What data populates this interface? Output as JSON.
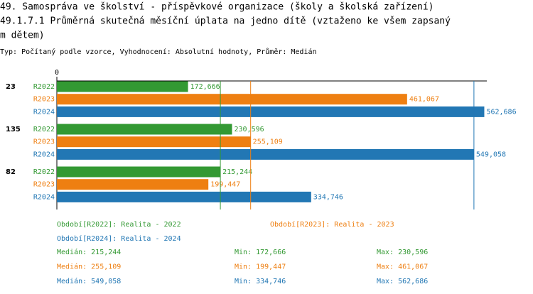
{
  "chart_data": {
    "type": "bar",
    "orientation": "horizontal",
    "title_lines": [
      "49. Samospráva ve školství - příspěvkové organizace (školy a školská zařízení)",
      "49.1.7.1 Průměrná skutečná měsíční úplata na jedno dítě (vztaženo ke všem zapsaný",
      "m dětem)"
    ],
    "subtitle": "Typ: Počítaný podle vzorce, Vyhodnocení: Absolutní hodnoty, Průměr: Medián",
    "categories": [
      "23",
      "135",
      "82"
    ],
    "xlim": [
      0,
      566000
    ],
    "xticks": [
      0
    ],
    "median_lines": true,
    "stat_labels": [
      "Medián:",
      "Min:",
      "Max:"
    ],
    "series": [
      {
        "name": "R2022",
        "legend_label": "Období[R2022]: Realita - 2022",
        "color": "#339933",
        "values": [
          172666,
          230596,
          215244
        ],
        "value_labels": [
          "172,666",
          "230,596",
          "215,244"
        ],
        "stats": [
          {
            "value": 215244,
            "label": "215,244"
          },
          {
            "value": 172666,
            "label": "172,666"
          },
          {
            "value": 230596,
            "label": "230,596"
          }
        ]
      },
      {
        "name": "R2023",
        "legend_label": "Období[R2023]: Realita - 2023",
        "color": "#ee7f11",
        "values": [
          461067,
          255109,
          199447
        ],
        "value_labels": [
          "461,067",
          "255,109",
          "199,447"
        ],
        "stats": [
          {
            "value": 255109,
            "label": "255,109"
          },
          {
            "value": 199447,
            "label": "199,447"
          },
          {
            "value": 461067,
            "label": "461,067"
          }
        ]
      },
      {
        "name": "R2024",
        "legend_label": "Období[R2024]: Realita - 2024",
        "color": "#2277b4",
        "values": [
          562686,
          549058,
          334746
        ],
        "value_labels": [
          "562,686",
          "549,058",
          "334,746"
        ],
        "stats": [
          {
            "value": 549058,
            "label": "549,058"
          },
          {
            "value": 334746,
            "label": "334,746"
          },
          {
            "value": 562686,
            "label": "562,686"
          }
        ]
      }
    ]
  }
}
